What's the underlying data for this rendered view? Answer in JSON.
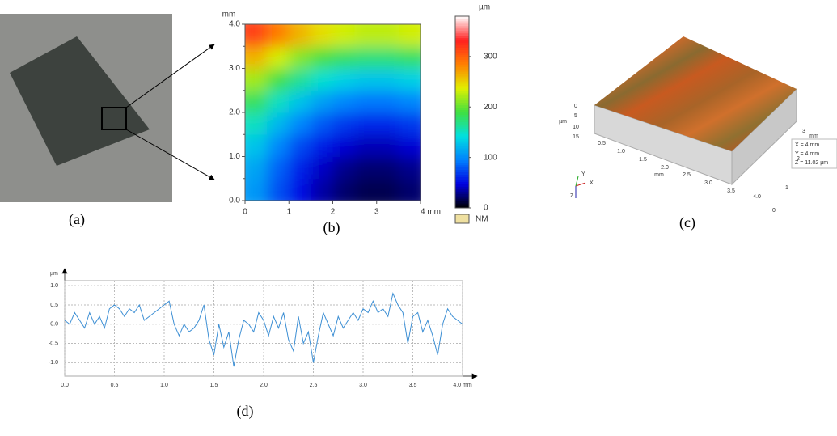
{
  "panel_labels": [
    "(a)",
    "(b)",
    "(c)",
    "(d)"
  ],
  "chart_data": [
    {
      "type": "heatmap",
      "xlabel": "mm",
      "ylabel": "mm",
      "x": [
        0.25,
        0.75,
        1.25,
        1.75,
        2.25,
        2.75,
        3.25,
        3.75
      ],
      "y": [
        0.25,
        0.75,
        1.25,
        1.75,
        2.25,
        2.75,
        3.25,
        3.75
      ],
      "z": [
        [
          107,
          77,
          53,
          35,
          23,
          17,
          17,
          23
        ],
        [
          114,
          84,
          60,
          42,
          30,
          24,
          24,
          30
        ],
        [
          129,
          99,
          75,
          57,
          45,
          39,
          39,
          45
        ],
        [
          152,
          122,
          98,
          80,
          68,
          62,
          62,
          68
        ],
        [
          182,
          152,
          128,
          110,
          98,
          92,
          92,
          98
        ],
        [
          219,
          189,
          165,
          147,
          135,
          129,
          129,
          135
        ],
        [
          264,
          234,
          210,
          192,
          180,
          174,
          174,
          180
        ],
        [
          317,
          287,
          263,
          245,
          233,
          227,
          227,
          233
        ]
      ],
      "xlim": [
        0,
        4
      ],
      "ylim": [
        0,
        4
      ],
      "xticks": [
        0,
        1,
        2,
        3,
        {
          "value": 4,
          "label": "4 mm"
        }
      ],
      "yticks": [
        {
          "value": 0,
          "label": "0.0"
        },
        0.5,
        {
          "value": 1,
          "label": "1.0"
        },
        1.5,
        {
          "value": 2,
          "label": "2.0"
        },
        2.5,
        {
          "value": 3,
          "label": "3.0"
        },
        3.5,
        {
          "value": 4,
          "label": "4.0"
        }
      ],
      "colorbar": {
        "label": "µm",
        "lim": [
          0,
          380
        ],
        "ticks": [
          0,
          100,
          200,
          300
        ],
        "colors": [
          "#000000",
          "#0000e0",
          "#0080ff",
          "#00e0e0",
          "#40e040",
          "#e0f000",
          "#ff8000",
          "#ff2020",
          "#ffffff"
        ]
      },
      "missing_label": "NM",
      "missing_color": "#efe0a0"
    },
    {
      "type": "line",
      "ylabel": "µm",
      "x": [
        0,
        0.05,
        0.1,
        0.15,
        0.2,
        0.25,
        0.3,
        0.35,
        0.4,
        0.45,
        0.5,
        0.55,
        0.6,
        0.65,
        0.7,
        0.75,
        0.8,
        0.85,
        0.9,
        0.95,
        1,
        1.05,
        1.1,
        1.15,
        1.2,
        1.25,
        1.3,
        1.35,
        1.4,
        1.45,
        1.5,
        1.55,
        1.6,
        1.65,
        1.7,
        1.75,
        1.8,
        1.85,
        1.9,
        1.95,
        2,
        2.05,
        2.1,
        2.15,
        2.2,
        2.25,
        2.3,
        2.35,
        2.4,
        2.45,
        2.5,
        2.55,
        2.6,
        2.65,
        2.7,
        2.75,
        2.8,
        2.85,
        2.9,
        2.95,
        3,
        3.05,
        3.1,
        3.15,
        3.2,
        3.25,
        3.3,
        3.35,
        3.4,
        3.45,
        3.5,
        3.55,
        3.6,
        3.65,
        3.7,
        3.75,
        3.8,
        3.85,
        3.9,
        3.95,
        4
      ],
      "values": [
        0.1,
        0,
        0.3,
        0.1,
        -0.1,
        0.3,
        0,
        0.2,
        -0.1,
        0.4,
        0.5,
        0.4,
        0.2,
        0.4,
        0.3,
        0.5,
        0.1,
        0.2,
        0.3,
        0.4,
        0.5,
        0.6,
        0,
        -0.3,
        0,
        -0.2,
        -0.1,
        0.1,
        0.5,
        -0.4,
        -0.8,
        0,
        -0.6,
        -0.2,
        -1.1,
        -0.4,
        0.1,
        0,
        -0.2,
        0.3,
        0.1,
        -0.3,
        0.2,
        -0.1,
        0.3,
        -0.4,
        -0.7,
        0.2,
        -0.5,
        -0.2,
        -1,
        -0.3,
        0.3,
        0,
        -0.3,
        0.2,
        -0.1,
        0.1,
        0.3,
        0.1,
        0.4,
        0.3,
        0.6,
        0.3,
        0.4,
        0.2,
        0.8,
        0.5,
        0.3,
        -0.5,
        0.2,
        0.3,
        -0.2,
        0.1,
        -0.3,
        -0.8,
        0,
        0.4,
        0.2,
        0.1,
        0
      ],
      "color": "#3d8fd4",
      "xlim": [
        0,
        4
      ],
      "ylim": [
        -1.35,
        1.13
      ],
      "xticks": [
        {
          "value": 0,
          "label": "0.0"
        },
        0.5,
        {
          "value": 1,
          "label": "1.0"
        },
        1.5,
        {
          "value": 2,
          "label": "2.0"
        },
        2.5,
        {
          "value": 3,
          "label": "3.0"
        },
        3.5,
        {
          "value": 4,
          "label": "4.0 mm"
        }
      ],
      "yticks": [
        {
          "value": 1,
          "label": "1.0"
        },
        0.5,
        {
          "value": 0,
          "label": "0.0"
        },
        -0.5,
        {
          "value": -1,
          "label": "-1.0"
        }
      ],
      "grid": true
    }
  ],
  "surface_3d": {
    "z_label": "µm",
    "z_ticks": [
      "0",
      "5",
      "10",
      "15"
    ],
    "x_label": "mm",
    "x_ticks": [
      "0.5",
      "1.0",
      "1.5",
      "2.0",
      "2.5",
      "3.0",
      "3.5",
      "4.0"
    ],
    "y_label": "mm",
    "y_ticks": [
      "0",
      "1",
      "2",
      "3"
    ],
    "info": [
      "X = 4 mm",
      "Y = 4 mm",
      "Z = 11.02 µm"
    ],
    "triad": [
      "Y",
      "X",
      "Z"
    ]
  }
}
